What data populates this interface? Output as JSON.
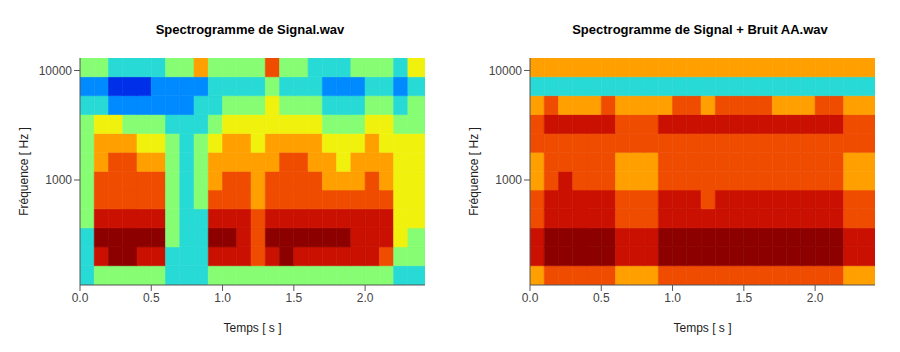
{
  "chart_data": [
    {
      "type": "heatmap",
      "title": "Spectrogramme de  Signal.wav",
      "x_label": "Temps [ s ]",
      "y_label": "Fréquence [ Hz ]",
      "log": "y",
      "xlim": [
        0,
        2.42
      ],
      "ylim": [
        110,
        13000
      ],
      "xticks": [
        {
          "value": 0,
          "label": "0.0"
        },
        0.5,
        {
          "value": 1,
          "label": "1.0"
        },
        1.5,
        {
          "value": 2,
          "label": "2.0"
        }
      ],
      "yticks": [
        1000,
        10000
      ],
      "x_bins": [
        0,
        0.1,
        0.2,
        0.3,
        0.4,
        0.5,
        0.6,
        0.7,
        0.8,
        0.9,
        1.0,
        1.1,
        1.2,
        1.3,
        1.4,
        1.5,
        1.6,
        1.7,
        1.8,
        1.9,
        2.0,
        2.1,
        2.2,
        2.3,
        2.42
      ],
      "y_bins": [
        110,
        165,
        245,
        365,
        545,
        810,
        1200,
        1790,
        2660,
        3960,
        5890,
        8760,
        13000
      ],
      "zlim": [
        0,
        9
      ],
      "cells": [
        [
          3,
          4,
          4,
          4,
          4,
          4,
          3,
          3,
          3,
          4,
          4,
          4,
          4,
          4,
          4,
          4,
          4,
          4,
          4,
          4,
          4,
          4,
          3,
          3
        ],
        [
          3,
          8,
          9,
          9,
          8,
          8,
          3,
          3,
          3,
          8,
          8,
          8,
          7,
          8,
          9,
          8,
          8,
          8,
          8,
          8,
          8,
          7,
          4,
          4
        ],
        [
          3,
          9,
          9,
          9,
          9,
          9,
          4,
          3,
          3,
          9,
          9,
          8,
          7,
          9,
          9,
          9,
          9,
          9,
          9,
          8,
          8,
          8,
          5,
          4
        ],
        [
          4,
          8,
          8,
          8,
          8,
          8,
          4,
          3,
          3,
          8,
          8,
          8,
          7,
          8,
          8,
          8,
          8,
          8,
          8,
          8,
          8,
          8,
          5,
          5
        ],
        [
          4,
          7,
          7,
          7,
          7,
          7,
          4,
          3,
          4,
          7,
          7,
          7,
          6,
          7,
          7,
          7,
          7,
          7,
          7,
          7,
          7,
          7,
          5,
          5
        ],
        [
          4,
          7,
          7,
          7,
          7,
          7,
          4,
          3,
          4,
          6,
          7,
          7,
          6,
          7,
          7,
          7,
          7,
          6,
          6,
          6,
          7,
          6,
          5,
          5
        ],
        [
          4,
          6,
          7,
          7,
          6,
          6,
          4,
          3,
          4,
          6,
          6,
          6,
          6,
          6,
          7,
          7,
          6,
          6,
          5,
          6,
          6,
          6,
          5,
          5
        ],
        [
          4,
          6,
          6,
          6,
          5,
          5,
          4,
          3,
          4,
          5,
          6,
          6,
          5,
          6,
          6,
          6,
          6,
          5,
          5,
          5,
          6,
          5,
          5,
          5
        ],
        [
          4,
          5,
          5,
          4,
          4,
          4,
          3,
          3,
          3,
          4,
          5,
          5,
          5,
          5,
          5,
          5,
          5,
          4,
          4,
          4,
          5,
          5,
          4,
          4
        ],
        [
          3,
          3,
          2,
          2,
          2,
          2,
          2,
          2,
          3,
          3,
          4,
          4,
          4,
          5,
          4,
          4,
          4,
          3,
          3,
          3,
          4,
          4,
          3,
          4
        ],
        [
          2,
          2,
          1,
          1,
          1,
          2,
          2,
          2,
          2,
          3,
          3,
          3,
          3,
          4,
          3,
          3,
          3,
          2,
          2,
          2,
          3,
          3,
          2,
          3
        ],
        [
          4,
          4,
          3,
          3,
          3,
          3,
          4,
          4,
          6,
          4,
          4,
          4,
          4,
          7,
          4,
          4,
          3,
          3,
          3,
          4,
          4,
          4,
          3,
          5
        ]
      ]
    },
    {
      "type": "heatmap",
      "title": "Spectrogramme de  Signal + Bruit AA.wav",
      "x_label": "Temps [ s ]",
      "y_label": "Fréquence [ Hz ]",
      "log": "y",
      "xlim": [
        0,
        2.42
      ],
      "ylim": [
        110,
        13000
      ],
      "xticks": [
        {
          "value": 0,
          "label": "0.0"
        },
        0.5,
        {
          "value": 1,
          "label": "1.0"
        },
        1.5,
        {
          "value": 2,
          "label": "2.0"
        }
      ],
      "yticks": [
        1000,
        10000
      ],
      "x_bins": [
        0,
        0.1,
        0.2,
        0.3,
        0.4,
        0.5,
        0.6,
        0.7,
        0.8,
        0.9,
        1.0,
        1.1,
        1.2,
        1.3,
        1.4,
        1.5,
        1.6,
        1.7,
        1.8,
        1.9,
        2.0,
        2.1,
        2.2,
        2.3,
        2.42
      ],
      "y_bins": [
        110,
        165,
        245,
        365,
        545,
        810,
        1200,
        1790,
        2660,
        3960,
        5890,
        8760,
        13000
      ],
      "zlim": [
        0,
        9
      ],
      "cells": [
        [
          6,
          7,
          7,
          7,
          7,
          7,
          6,
          6,
          6,
          7,
          7,
          7,
          7,
          7,
          7,
          7,
          7,
          7,
          7,
          7,
          7,
          7,
          6,
          6
        ],
        [
          8,
          9,
          9,
          9,
          9,
          9,
          8,
          8,
          8,
          9,
          9,
          9,
          9,
          9,
          9,
          9,
          9,
          9,
          9,
          9,
          9,
          9,
          8,
          8
        ],
        [
          8,
          9,
          9,
          9,
          9,
          9,
          8,
          8,
          8,
          9,
          9,
          9,
          9,
          9,
          9,
          9,
          9,
          9,
          9,
          9,
          9,
          9,
          8,
          8
        ],
        [
          7,
          8,
          8,
          8,
          8,
          8,
          7,
          7,
          7,
          8,
          8,
          8,
          8,
          8,
          8,
          8,
          8,
          8,
          8,
          8,
          8,
          8,
          7,
          7
        ],
        [
          7,
          8,
          8,
          8,
          8,
          8,
          7,
          7,
          7,
          8,
          8,
          8,
          7,
          8,
          8,
          8,
          8,
          8,
          8,
          8,
          8,
          8,
          7,
          7
        ],
        [
          6,
          7,
          8,
          7,
          7,
          7,
          6,
          6,
          6,
          7,
          7,
          7,
          7,
          7,
          7,
          7,
          7,
          7,
          7,
          7,
          7,
          7,
          6,
          6
        ],
        [
          6,
          7,
          7,
          7,
          7,
          7,
          6,
          6,
          6,
          7,
          7,
          7,
          7,
          7,
          7,
          7,
          7,
          7,
          7,
          7,
          7,
          7,
          6,
          6
        ],
        [
          7,
          7,
          7,
          7,
          7,
          7,
          7,
          7,
          7,
          7,
          7,
          7,
          7,
          7,
          7,
          7,
          7,
          7,
          7,
          7,
          7,
          7,
          7,
          7
        ],
        [
          7,
          8,
          8,
          8,
          8,
          8,
          7,
          7,
          7,
          8,
          8,
          8,
          8,
          8,
          8,
          8,
          8,
          8,
          8,
          8,
          8,
          8,
          7,
          7
        ],
        [
          6,
          7,
          6,
          6,
          6,
          7,
          6,
          6,
          6,
          6,
          7,
          7,
          6,
          7,
          7,
          7,
          7,
          6,
          6,
          6,
          7,
          7,
          6,
          6
        ],
        [
          3,
          3,
          3,
          3,
          3,
          3,
          3,
          3,
          3,
          3,
          3,
          3,
          3,
          3,
          3,
          3,
          3,
          3,
          3,
          3,
          3,
          3,
          3,
          3
        ],
        [
          6,
          6,
          6,
          6,
          6,
          6,
          6,
          6,
          6,
          6,
          6,
          6,
          6,
          6,
          6,
          6,
          6,
          6,
          6,
          6,
          6,
          6,
          6,
          6
        ]
      ]
    }
  ]
}
